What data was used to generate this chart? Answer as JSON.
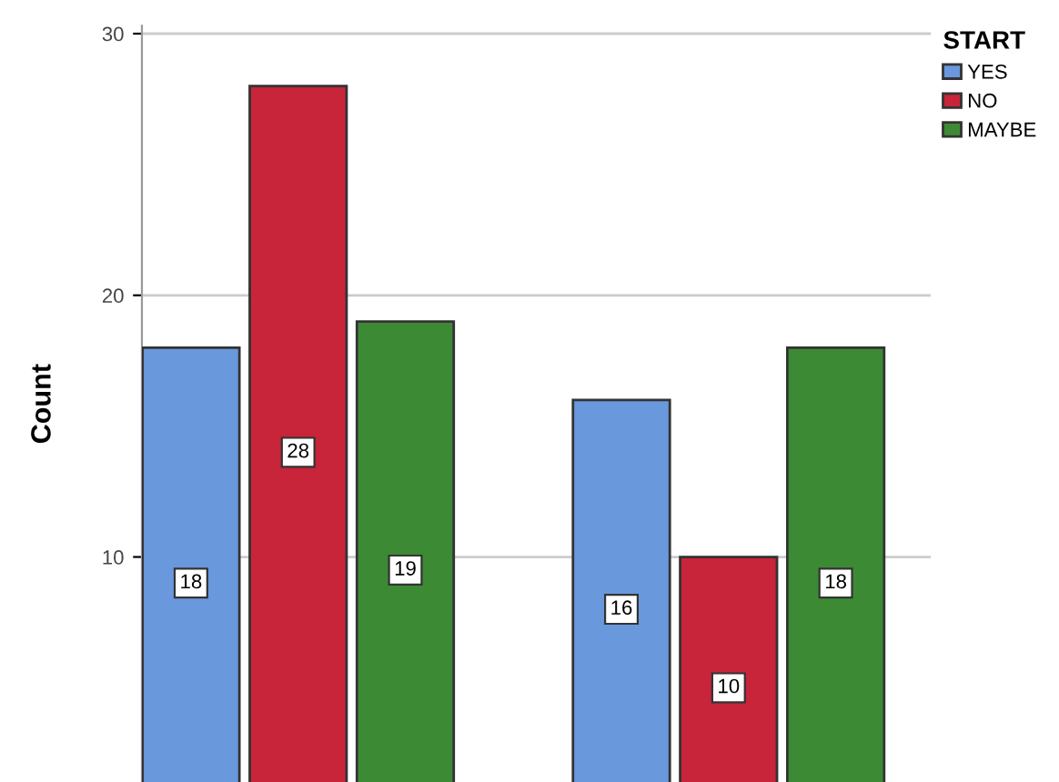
{
  "chart_data": {
    "type": "bar",
    "ylabel": "Count",
    "legend_title": "START",
    "categories": [
      null,
      null
    ],
    "series": [
      {
        "name": "YES",
        "color": "#6a98dd",
        "values": [
          18,
          16
        ]
      },
      {
        "name": "NO",
        "color": "#c8243a",
        "values": [
          28,
          10
        ]
      },
      {
        "name": "MAYBE",
        "color": "#3d8a35",
        "values": [
          19,
          18
        ]
      }
    ],
    "ylim": [
      1.4,
      30.3
    ],
    "yticks": [
      10,
      20,
      30
    ],
    "grid": "y",
    "legend": "top right",
    "data_labels": true
  }
}
